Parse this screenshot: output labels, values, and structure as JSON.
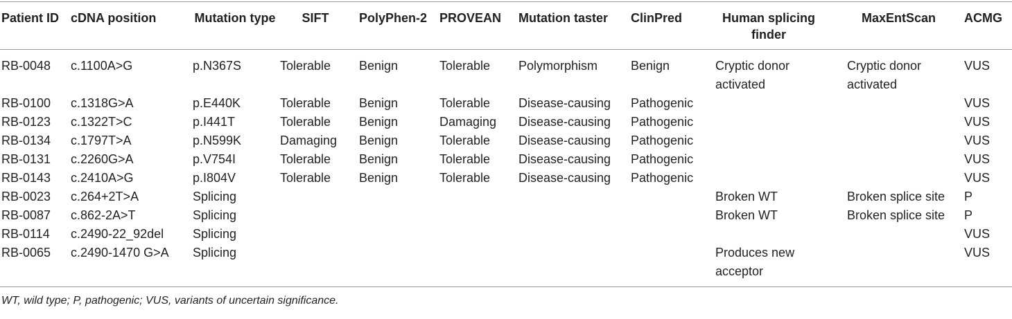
{
  "table": {
    "headers": [
      "Patient ID",
      "cDNA position",
      "Mutation type",
      "SIFT",
      "PolyPhen-2",
      "PROVEAN",
      "Mutation taster",
      "ClinPred",
      "Human splicing finder",
      "MaxEntScan",
      "ACMG"
    ],
    "rows": [
      [
        "RB-0048",
        "c.1100A>G",
        "p.N367S",
        "Tolerable",
        "Benign",
        "Tolerable",
        "Polymorphism",
        "Benign",
        "Cryptic donor activated",
        "Cryptic donor activated",
        "VUS"
      ],
      [
        "RB-0100",
        "c.1318G>A",
        "p.E440K",
        "Tolerable",
        "Benign",
        "Tolerable",
        "Disease-causing",
        "Pathogenic",
        "",
        "",
        "VUS"
      ],
      [
        "RB-0123",
        "c.1322T>C",
        "p.I441T",
        "Tolerable",
        "Benign",
        "Damaging",
        "Disease-causing",
        "Pathogenic",
        "",
        "",
        "VUS"
      ],
      [
        "RB-0134",
        "c.1797T>A",
        "p.N599K",
        "Damaging",
        "Benign",
        "Tolerable",
        "Disease-causing",
        "Pathogenic",
        "",
        "",
        "VUS"
      ],
      [
        "RB-0131",
        "c.2260G>A",
        "p.V754I",
        "Tolerable",
        "Benign",
        "Tolerable",
        "Disease-causing",
        "Pathogenic",
        "",
        "",
        "VUS"
      ],
      [
        "RB-0143",
        "c.2410A>G",
        "p.I804V",
        "Tolerable",
        "Benign",
        "Tolerable",
        "Disease-causing",
        "Pathogenic",
        "",
        "",
        "VUS"
      ],
      [
        "RB-0023",
        "c.264+2T>A",
        "Splicing",
        "",
        "",
        "",
        "",
        "",
        "Broken WT",
        "Broken splice site",
        "P"
      ],
      [
        "RB-0087",
        "c.862-2A>T",
        "Splicing",
        "",
        "",
        "",
        "",
        "",
        "Broken WT",
        "Broken splice site",
        "P"
      ],
      [
        "RB-0114",
        "c.2490-22_92del",
        "Splicing",
        "",
        "",
        "",
        "",
        "",
        "",
        "",
        "VUS"
      ],
      [
        "RB-0065",
        "c.2490-1470 G>A",
        "Splicing",
        "",
        "",
        "",
        "",
        "",
        "Produces new acceptor",
        "",
        "VUS"
      ]
    ]
  },
  "footnote": "WT, wild type; P, pathogenic; VUS, variants of uncertain significance."
}
